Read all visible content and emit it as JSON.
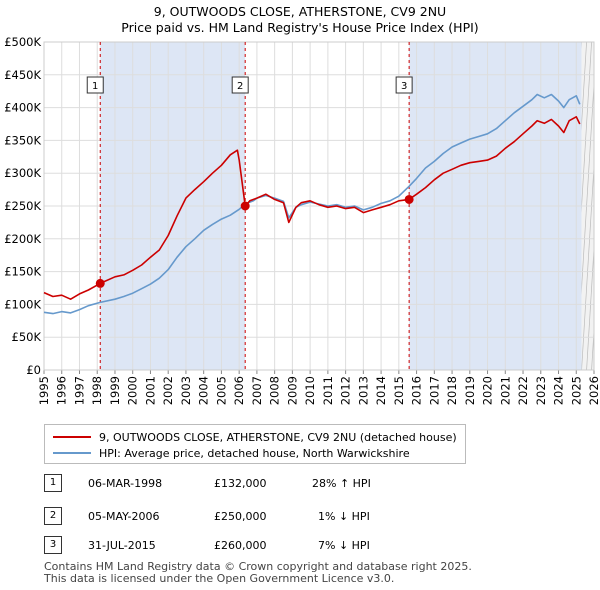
{
  "title_line1": "9, OUTWOODS CLOSE, ATHERSTONE, CV9 2NU",
  "title_line2": "Price paid vs. HM Land Registry's House Price Index (HPI)",
  "chart_data": {
    "type": "line",
    "xlim": [
      1995,
      2026
    ],
    "ylim": [
      0,
      500000
    ],
    "y_ticks": [
      {
        "value": 0,
        "label": "£0"
      },
      {
        "value": 50000,
        "label": "£50K"
      },
      {
        "value": 100000,
        "label": "£100K"
      },
      {
        "value": 150000,
        "label": "£150K"
      },
      {
        "value": 200000,
        "label": "£200K"
      },
      {
        "value": 250000,
        "label": "£250K"
      },
      {
        "value": 300000,
        "label": "£300K"
      },
      {
        "value": 350000,
        "label": "£350K"
      },
      {
        "value": 400000,
        "label": "£400K"
      },
      {
        "value": 450000,
        "label": "£450K"
      },
      {
        "value": 500000,
        "label": "£500K"
      }
    ],
    "x_ticks": [
      "1995",
      "1996",
      "1997",
      "1998",
      "1999",
      "2000",
      "2001",
      "2002",
      "2003",
      "2004",
      "2005",
      "2006",
      "2007",
      "2008",
      "2009",
      "2010",
      "2011",
      "2012",
      "2013",
      "2014",
      "2015",
      "2016",
      "2017",
      "2018",
      "2019",
      "2020",
      "2021",
      "2022",
      "2023",
      "2024",
      "2025",
      "2026"
    ],
    "data_end_year": 2025.3,
    "series": [
      {
        "name": "9, OUTWOODS CLOSE, ATHERSTONE, CV9 2NU (detached house)",
        "color": "#cc0000",
        "x": [
          1995,
          1995.5,
          1996,
          1996.5,
          1997,
          1997.5,
          1998.17,
          1999,
          1999.5,
          2000,
          2000.5,
          2001,
          2001.5,
          2002,
          2002.5,
          2003,
          2003.5,
          2004,
          2004.5,
          2005,
          2005.5,
          2005.9,
          2006.0,
          2006.34,
          2006.6,
          2007,
          2007.5,
          2008,
          2008.5,
          2008.8,
          2009.2,
          2009.5,
          2010,
          2010.5,
          2011,
          2011.5,
          2012,
          2012.5,
          2013,
          2013.5,
          2014,
          2014.5,
          2015,
          2015.58,
          2016,
          2016.5,
          2017,
          2017.5,
          2018,
          2018.5,
          2019,
          2019.5,
          2020,
          2020.5,
          2021,
          2021.5,
          2022,
          2022.5,
          2022.8,
          2023.2,
          2023.6,
          2024,
          2024.3,
          2024.6,
          2025,
          2025.2
        ],
        "y": [
          118000,
          112000,
          114000,
          108000,
          116000,
          122000,
          132000,
          142000,
          145000,
          152000,
          160000,
          172000,
          183000,
          205000,
          235000,
          262000,
          275000,
          287000,
          300000,
          312000,
          328000,
          335000,
          320000,
          250000,
          258000,
          262000,
          268000,
          260000,
          255000,
          225000,
          248000,
          255000,
          258000,
          252000,
          248000,
          250000,
          246000,
          248000,
          240000,
          244000,
          248000,
          252000,
          258000,
          260000,
          268000,
          278000,
          290000,
          300000,
          306000,
          312000,
          316000,
          318000,
          320000,
          326000,
          338000,
          348000,
          360000,
          372000,
          380000,
          376000,
          382000,
          372000,
          362000,
          380000,
          386000,
          375000
        ]
      },
      {
        "name": "HPI: Average price, detached house, North Warwickshire",
        "color": "#6699cc",
        "x": [
          1995,
          1995.5,
          1996,
          1996.5,
          1997,
          1997.5,
          1998.17,
          1999,
          1999.5,
          2000,
          2000.5,
          2001,
          2001.5,
          2002,
          2002.5,
          2003,
          2003.5,
          2004,
          2004.5,
          2005,
          2005.5,
          2006,
          2006.34,
          2006.8,
          2007,
          2007.5,
          2008,
          2008.5,
          2008.8,
          2009.2,
          2009.5,
          2010,
          2010.5,
          2011,
          2011.5,
          2012,
          2012.5,
          2013,
          2013.5,
          2014,
          2014.5,
          2015,
          2015.58,
          2016,
          2016.5,
          2017,
          2017.5,
          2018,
          2018.5,
          2019,
          2019.5,
          2020,
          2020.5,
          2021,
          2021.5,
          2022,
          2022.5,
          2022.8,
          2023.2,
          2023.6,
          2024,
          2024.3,
          2024.6,
          2025,
          2025.2
        ],
        "y": [
          88000,
          86000,
          89000,
          87000,
          92000,
          98000,
          103000,
          108000,
          112000,
          117000,
          124000,
          131000,
          140000,
          153000,
          172000,
          188000,
          200000,
          213000,
          222000,
          230000,
          236000,
          245000,
          253000,
          258000,
          262000,
          266000,
          262000,
          257000,
          232000,
          248000,
          252000,
          256000,
          253000,
          250000,
          252000,
          248000,
          250000,
          244000,
          248000,
          254000,
          258000,
          265000,
          280000,
          292000,
          308000,
          318000,
          330000,
          340000,
          346000,
          352000,
          356000,
          360000,
          368000,
          380000,
          392000,
          402000,
          412000,
          420000,
          415000,
          420000,
          410000,
          400000,
          412000,
          418000,
          405000
        ]
      }
    ],
    "sales": [
      {
        "label": "1",
        "x": 1998.17,
        "y": 132000
      },
      {
        "label": "2",
        "x": 2006.34,
        "y": 250000
      },
      {
        "label": "3",
        "x": 2015.58,
        "y": 260000
      }
    ]
  },
  "legend": {
    "property": "9, OUTWOODS CLOSE, ATHERSTONE, CV9 2NU (detached house)",
    "hpi": "HPI: Average price, detached house, North Warwickshire"
  },
  "sales_table": [
    {
      "num": "1",
      "date": "06-MAR-1998",
      "price": "£132,000",
      "hpi": "28% ↑ HPI"
    },
    {
      "num": "2",
      "date": "05-MAY-2006",
      "price": "£250,000",
      "hpi": "1% ↓ HPI"
    },
    {
      "num": "3",
      "date": "31-JUL-2015",
      "price": "£260,000",
      "hpi": "7% ↓ HPI"
    }
  ],
  "footer": {
    "line1": "Contains HM Land Registry data © Crown copyright and database right 2025.",
    "line2": "This data is licensed under the Open Government Licence v3.0."
  },
  "colors": {
    "property": "#cc0000",
    "hpi": "#6699cc",
    "shade": "#dde6f5",
    "grid": "#dddddd"
  }
}
